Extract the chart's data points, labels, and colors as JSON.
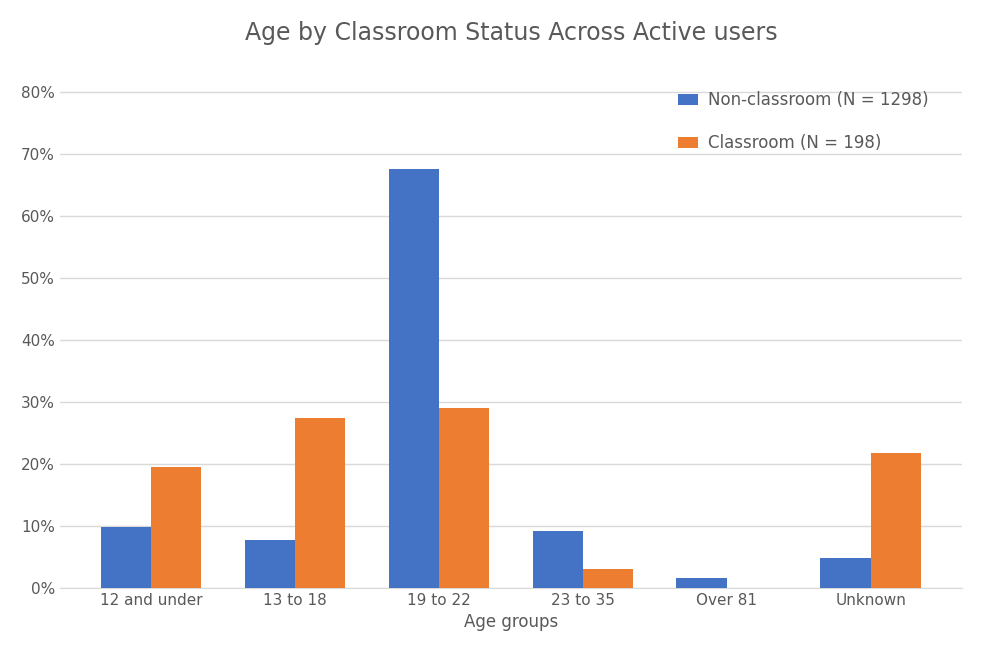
{
  "title": "Age by Classroom Status Across Active users",
  "xlabel": "Age groups",
  "categories": [
    "12 and under",
    "13 to 18",
    "19 to 22",
    "23 to 35",
    "Over 81",
    "Unknown"
  ],
  "non_classroom": [
    0.098,
    0.077,
    0.675,
    0.091,
    0.016,
    0.048
  ],
  "classroom": [
    0.194,
    0.273,
    0.29,
    0.031,
    0.0,
    0.218
  ],
  "non_classroom_color": "#4472C4",
  "classroom_color": "#ED7D31",
  "non_classroom_label": "Non-classroom (N = 1298)",
  "classroom_label": "Classroom (N = 198)",
  "ylim": [
    0,
    0.85
  ],
  "yticks": [
    0.0,
    0.1,
    0.2,
    0.3,
    0.4,
    0.5,
    0.6,
    0.7,
    0.8
  ],
  "ytick_labels": [
    "0%",
    "10%",
    "20%",
    "30%",
    "40%",
    "50%",
    "60%",
    "70%",
    "80%"
  ],
  "background_color": "#FFFFFF",
  "grid_color": "#D9D9D9",
  "text_color": "#595959",
  "bar_width": 0.35,
  "title_fontsize": 17,
  "label_fontsize": 12,
  "tick_fontsize": 11,
  "legend_fontsize": 12
}
